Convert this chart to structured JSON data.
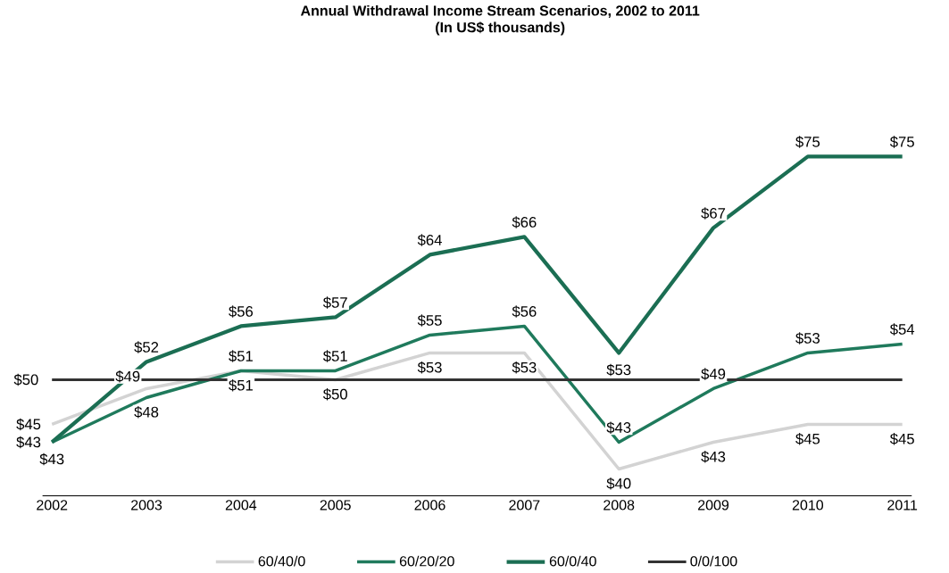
{
  "chart_data": {
    "type": "line",
    "title": "Annual Withdrawal Income Stream Scenarios, 2002 to 2011",
    "subtitle": "(In US$ thousands)",
    "categories": [
      "2002",
      "2003",
      "2004",
      "2005",
      "2006",
      "2007",
      "2008",
      "2009",
      "2010",
      "2011"
    ],
    "series": [
      {
        "name": "60/40/0",
        "color": "#d3d3d3",
        "values": [
          45,
          49,
          51,
          50,
          53,
          53,
          40,
          43,
          45,
          45
        ],
        "value_labels": [
          "$45",
          "$49",
          "$51",
          "$50",
          "$53",
          "$53",
          "$40",
          "$43",
          "$45",
          "$45"
        ]
      },
      {
        "name": "60/20/20",
        "color": "#1f7a5c",
        "values": [
          43,
          48,
          51,
          51,
          55,
          56,
          43,
          49,
          53,
          54
        ],
        "value_labels": [
          "$43",
          "$48",
          "$51",
          "$51",
          "$55",
          "$56",
          "$43",
          "$49",
          "$53",
          "$54"
        ]
      },
      {
        "name": "60/0/40",
        "color": "#1b6e53",
        "values": [
          43,
          52,
          56,
          57,
          64,
          66,
          53,
          67,
          75,
          75
        ],
        "value_labels": [
          "$43",
          "$52",
          "$56",
          "$57",
          "$64",
          "$66",
          "$53",
          "$67",
          "$75",
          "$75"
        ]
      },
      {
        "name": "0/0/100",
        "color": "#333333",
        "values": [
          50,
          50,
          50,
          50,
          50,
          50,
          50,
          50,
          50,
          50
        ],
        "value_labels": [
          "$50",
          null,
          null,
          null,
          null,
          null,
          null,
          null,
          null,
          null
        ]
      }
    ],
    "legend": "bottom",
    "marker": "none",
    "line_style": "solid"
  }
}
